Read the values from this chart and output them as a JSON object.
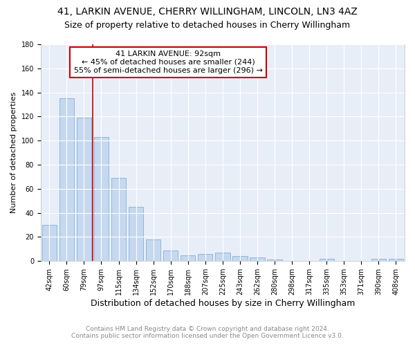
{
  "title1": "41, LARKIN AVENUE, CHERRY WILLINGHAM, LINCOLN, LN3 4AZ",
  "title2": "Size of property relative to detached houses in Cherry Willingham",
  "xlabel": "Distribution of detached houses by size in Cherry Willingham",
  "ylabel": "Number of detached properties",
  "footnote1": "Contains HM Land Registry data © Crown copyright and database right 2024.",
  "footnote2": "Contains public sector information licensed under the Open Government Licence v3.0.",
  "categories": [
    "42sqm",
    "60sqm",
    "79sqm",
    "97sqm",
    "115sqm",
    "134sqm",
    "152sqm",
    "170sqm",
    "188sqm",
    "207sqm",
    "225sqm",
    "243sqm",
    "262sqm",
    "280sqm",
    "298sqm",
    "317sqm",
    "335sqm",
    "353sqm",
    "371sqm",
    "390sqm",
    "408sqm"
  ],
  "values": [
    30,
    135,
    119,
    103,
    69,
    45,
    18,
    9,
    5,
    6,
    7,
    4,
    3,
    1,
    0,
    0,
    2,
    0,
    0,
    2,
    2
  ],
  "bar_color": "#c5d8ef",
  "bar_edge_color": "#7fb0d8",
  "property_label": "41 LARKIN AVENUE: 92sqm",
  "annotation_line1": "← 45% of detached houses are smaller (244)",
  "annotation_line2": "55% of semi-detached houses are larger (296) →",
  "vline_color": "#cc0000",
  "annotation_box_edge_color": "#cc0000",
  "ylim": [
    0,
    180
  ],
  "yticks": [
    0,
    20,
    40,
    60,
    80,
    100,
    120,
    140,
    160,
    180
  ],
  "bg_color": "#e8eef8",
  "grid_color": "#ffffff",
  "title1_fontsize": 10,
  "title2_fontsize": 9,
  "xlabel_fontsize": 9,
  "ylabel_fontsize": 8,
  "tick_fontsize": 7,
  "footnote_fontsize": 6.5,
  "annotation_fontsize": 8
}
